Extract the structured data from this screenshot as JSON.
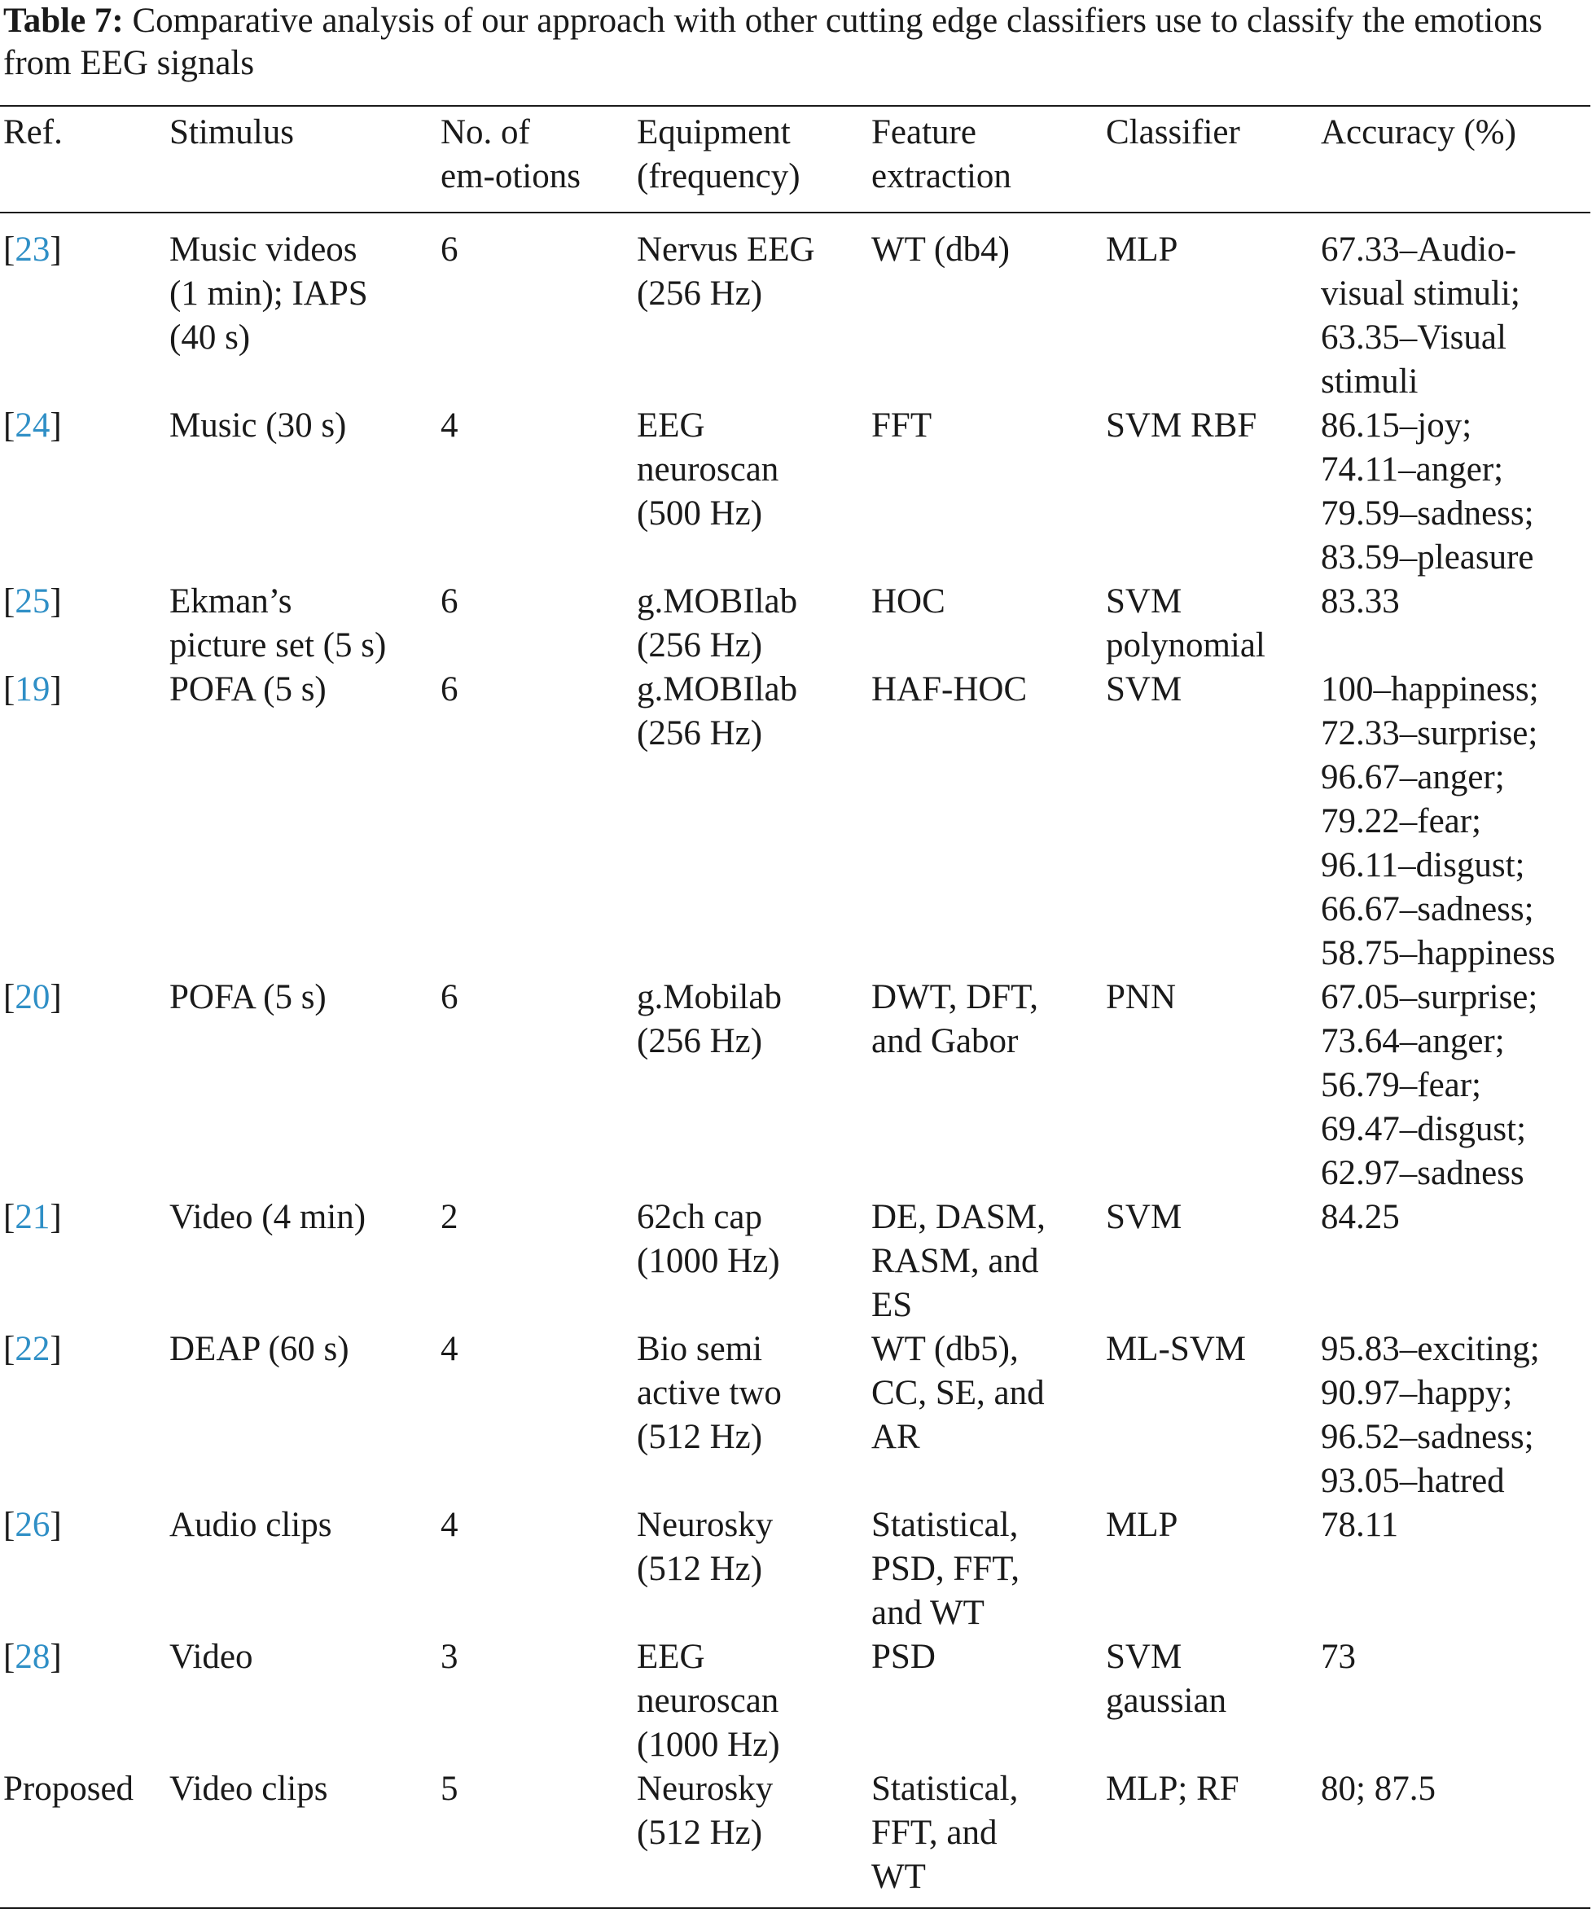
{
  "caption": {
    "label": "Table 7:",
    "text": "Comparative analysis of our approach with other cutting edge classifiers use to classify the emotions from EEG signals"
  },
  "table": {
    "headers": [
      "Ref.",
      "Stimulus",
      "No. of\nem-otions",
      "Equipment\n(frequency)",
      "Feature\nextraction",
      "Classifier",
      "Accuracy (%)"
    ],
    "rows": [
      {
        "ref": "23",
        "stimulus": "Music videos\n(1 min); IAPS\n(40 s)",
        "emotions": "6",
        "equipment": "Nervus EEG\n(256 Hz)",
        "feature": "WT (db4)",
        "classifier": "MLP",
        "accuracy": "67.33–Audio-\nvisual stimuli;\n63.35–Visual\nstimuli"
      },
      {
        "ref": "24",
        "stimulus": "Music (30 s)",
        "emotions": "4",
        "equipment": "EEG\nneuroscan\n(500 Hz)",
        "feature": "FFT",
        "classifier": "SVM RBF",
        "accuracy": "86.15–joy;\n74.11–anger;\n79.59–sadness;\n83.59–pleasure"
      },
      {
        "ref": "25",
        "stimulus": "Ekman’s\npicture set (5 s)",
        "emotions": "6",
        "equipment": "g.MOBIlab\n(256 Hz)",
        "feature": "HOC",
        "classifier": "SVM\npolynomial",
        "accuracy": "83.33"
      },
      {
        "ref": "19",
        "stimulus": "POFA (5 s)",
        "emotions": "6",
        "equipment": "g.MOBIlab\n(256 Hz)",
        "feature": "HAF-HOC",
        "classifier": "SVM",
        "accuracy": "100–happiness;\n72.33–surprise;\n96.67–anger;\n79.22–fear;\n96.11–disgust;\n66.67–sadness;\n58.75–happiness"
      },
      {
        "ref": "20",
        "stimulus": "POFA (5 s)",
        "emotions": "6",
        "equipment": "g.Mobilab\n(256 Hz)",
        "feature": "DWT, DFT,\nand Gabor",
        "classifier": "PNN",
        "accuracy": "67.05–surprise;\n73.64–anger;\n56.79–fear;\n69.47–disgust;\n62.97–sadness"
      },
      {
        "ref": "21",
        "stimulus": "Video (4 min)",
        "emotions": "2",
        "equipment": "62ch cap\n(1000 Hz)",
        "feature": "DE, DASM,\nRASM, and\nES",
        "classifier": "SVM",
        "accuracy": "84.25"
      },
      {
        "ref": "22",
        "stimulus": "DEAP (60 s)",
        "emotions": "4",
        "equipment": "Bio semi\nactive two\n(512 Hz)",
        "feature": "WT (db5),\nCC, SE, and\nAR",
        "classifier": "ML-SVM",
        "accuracy": "95.83–exciting;\n90.97–happy;\n96.52–sadness;\n93.05–hatred"
      },
      {
        "ref": "26",
        "stimulus": "Audio clips",
        "emotions": "4",
        "equipment": "Neurosky\n(512 Hz)",
        "feature": "Statistical,\nPSD, FFT,\nand WT",
        "classifier": "MLP",
        "accuracy": "78.11"
      },
      {
        "ref": "28",
        "stimulus": "Video",
        "emotions": "3",
        "equipment": "EEG\nneuroscan\n(1000 Hz)",
        "feature": "PSD",
        "classifier": "SVM\ngaussian",
        "accuracy": "73"
      },
      {
        "ref": "Proposed",
        "stimulus": "Video clips",
        "emotions": "5",
        "equipment": "Neurosky\n(512 Hz)",
        "feature": "Statistical,\nFFT, and\nWT",
        "classifier": "MLP; RF",
        "accuracy": "80; 87.5"
      }
    ]
  }
}
